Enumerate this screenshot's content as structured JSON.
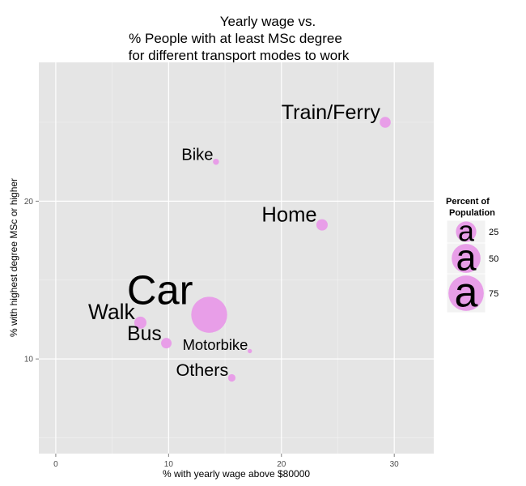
{
  "chart_data": {
    "type": "scatter",
    "title": [
      "Yearly wage vs.",
      "% People with at least MSc degree",
      "for different transport modes to work"
    ],
    "xlabel": "% with yearly wage above $80000",
    "ylabel": "% with highest degree MSc or higher",
    "xlim": [
      -1.5,
      33.5
    ],
    "ylim": [
      4.0,
      28.8
    ],
    "xticks": [
      0,
      10,
      20,
      30
    ],
    "yticks": [
      10,
      20
    ],
    "grid": true,
    "point_color": "#e89ee8",
    "panel_color": "#e5e5e5",
    "points": [
      {
        "label": "Train/Ferry",
        "x": 29.2,
        "y": 25.0,
        "size": 6.5
      },
      {
        "label": "Bike",
        "x": 14.2,
        "y": 22.5,
        "size": 2.0
      },
      {
        "label": "Home",
        "x": 23.6,
        "y": 18.5,
        "size": 7.0
      },
      {
        "label": "Car",
        "x": 13.6,
        "y": 12.8,
        "size": 70.0
      },
      {
        "label": "Walk",
        "x": 7.5,
        "y": 12.3,
        "size": 8.0
      },
      {
        "label": "Bus",
        "x": 9.8,
        "y": 11.0,
        "size": 6.0
      },
      {
        "label": "Motorbike",
        "x": 17.2,
        "y": 10.5,
        "size": 1.0
      },
      {
        "label": "Others",
        "x": 15.6,
        "y": 8.8,
        "size": 3.0
      }
    ],
    "legend": {
      "title": [
        "Percent of",
        "Population"
      ],
      "placement": "right",
      "key_glyph": "a",
      "entries": [
        {
          "label": "25",
          "size": 25
        },
        {
          "label": "50",
          "size": 50
        },
        {
          "label": "75",
          "size": 75
        }
      ]
    }
  }
}
